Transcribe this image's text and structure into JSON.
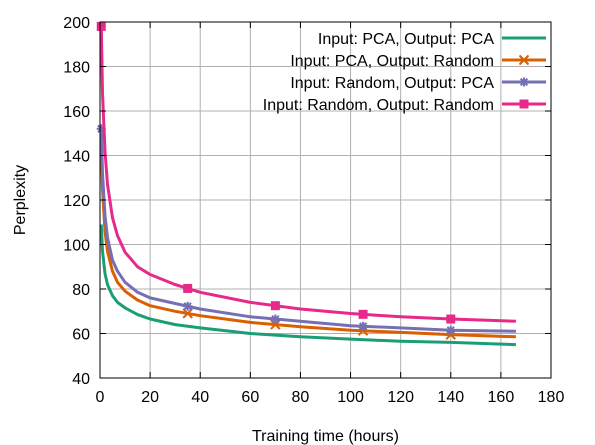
{
  "chart_data": {
    "type": "line",
    "title": "",
    "xlabel": "Training time (hours)",
    "ylabel": "Perplexity",
    "xlim": [
      0,
      180
    ],
    "ylim": [
      40,
      200
    ],
    "xticks": [
      0,
      20,
      40,
      60,
      80,
      100,
      120,
      140,
      160,
      180
    ],
    "yticks": [
      40,
      60,
      80,
      100,
      120,
      140,
      160,
      180,
      200
    ],
    "grid": true,
    "legend_position": "top-right",
    "series": [
      {
        "name": "Input: PCA, Output: PCA",
        "color": "#1b9e77",
        "marker": "none",
        "x": [
          0.5,
          1,
          2,
          3,
          5,
          7,
          10,
          15,
          20,
          30,
          40,
          60,
          80,
          100,
          120,
          140,
          166
        ],
        "y": [
          109,
          97,
          87,
          82,
          77,
          74,
          71.5,
          68.5,
          66.5,
          64,
          62.5,
          60,
          58.5,
          57.5,
          56.5,
          56,
          55
        ]
      },
      {
        "name": "Input: PCA, Output: Random",
        "color": "#d95f02",
        "marker": "x",
        "marker_x": [
          35,
          70,
          105,
          140
        ],
        "x": [
          0.5,
          1,
          2,
          3,
          5,
          7,
          10,
          15,
          20,
          30,
          40,
          60,
          80,
          100,
          120,
          140,
          166
        ],
        "y": [
          147,
          125,
          106,
          97,
          88,
          83,
          79,
          75,
          72.5,
          70,
          68,
          65,
          63,
          61.5,
          60.5,
          59.5,
          58.5
        ]
      },
      {
        "name": "Input: Random, Output: PCA",
        "color": "#7570b3",
        "marker": "star",
        "marker_x": [
          0.5,
          35,
          70,
          105,
          140
        ],
        "x": [
          0.5,
          1,
          2,
          3,
          5,
          7,
          10,
          15,
          20,
          30,
          40,
          60,
          80,
          100,
          120,
          140,
          166
        ],
        "y": [
          152,
          132,
          113,
          103,
          93,
          88,
          83,
          78.5,
          76,
          73.5,
          71,
          67.5,
          65.5,
          63.5,
          62.5,
          61.5,
          61
        ]
      },
      {
        "name": "Input: Random, Output: Random",
        "color": "#e7298a",
        "marker": "square",
        "marker_x": [
          0.5,
          35,
          70,
          105,
          140
        ],
        "x": [
          0.5,
          1,
          2,
          3,
          5,
          7,
          10,
          15,
          20,
          30,
          40,
          60,
          80,
          100,
          120,
          140,
          166
        ],
        "y": [
          198,
          168,
          142,
          127,
          112,
          104,
          96.5,
          90,
          86.5,
          82,
          78.5,
          74,
          71,
          69,
          67.5,
          66.5,
          65.5
        ]
      }
    ]
  }
}
